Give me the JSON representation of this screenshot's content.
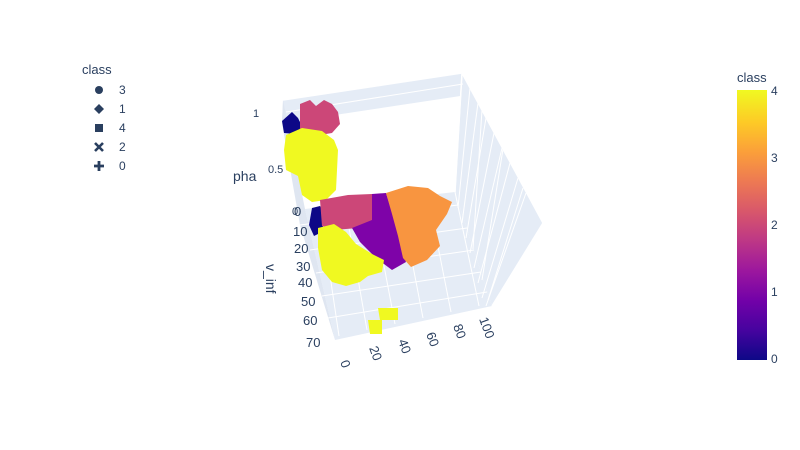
{
  "chart_data": {
    "type": "scatter3d",
    "title": "",
    "legend": {
      "title": "class",
      "placement": "top-left",
      "items": [
        {
          "label": "3",
          "symbol": "circle-icon"
        },
        {
          "label": "1",
          "symbol": "diamond-icon"
        },
        {
          "label": "4",
          "symbol": "square-icon"
        },
        {
          "label": "2",
          "symbol": "x-icon"
        },
        {
          "label": "0",
          "symbol": "cross-icon"
        }
      ]
    },
    "colorbar": {
      "title": "class",
      "range": [
        0,
        4
      ],
      "ticks": [
        "4",
        "3",
        "2",
        "1",
        "0"
      ],
      "colorscale": "plasma"
    },
    "axes": {
      "z": {
        "label": "pha",
        "ticks": [
          "1",
          "0.5",
          "0"
        ],
        "range": [
          0,
          1
        ]
      },
      "y": {
        "label": "v_inf",
        "ticks": [
          "0",
          "10",
          "20",
          "30",
          "40",
          "50",
          "60",
          "70"
        ],
        "range": [
          0,
          70
        ]
      },
      "x": {
        "label": "",
        "ticks": [
          "0",
          "20",
          "40",
          "60",
          "80",
          "100"
        ],
        "range": [
          0,
          100
        ]
      }
    },
    "clusters": [
      {
        "class": 0,
        "color": "#0d0887",
        "region": "v_inf 0-8, x 0-5, pha 1 plane top"
      },
      {
        "class": 0,
        "color": "#0d0887",
        "region": "v_inf 0-5, x 0-8, pha 0"
      },
      {
        "class": 2,
        "color": "#cc4778",
        "region": "x 5-25, pha 1"
      },
      {
        "class": 2,
        "color": "#cc4778",
        "region": "x 5-35, pha 0"
      },
      {
        "class": 4,
        "color": "#f0f921",
        "region": "x 0-30, pha 0.2-0.9"
      },
      {
        "class": 4,
        "color": "#f0f921",
        "region": "v_inf 10-40, x 0-30, pha 0"
      },
      {
        "class": 4,
        "color": "#f0f921",
        "region": "v_inf 55-65, x 20-40, pha 0"
      },
      {
        "class": 1,
        "color": "#7e03a8",
        "region": "x 30-55, pha 0"
      },
      {
        "class": 3,
        "color": "#f89540",
        "region": "x 40-80, pha 0"
      }
    ]
  }
}
